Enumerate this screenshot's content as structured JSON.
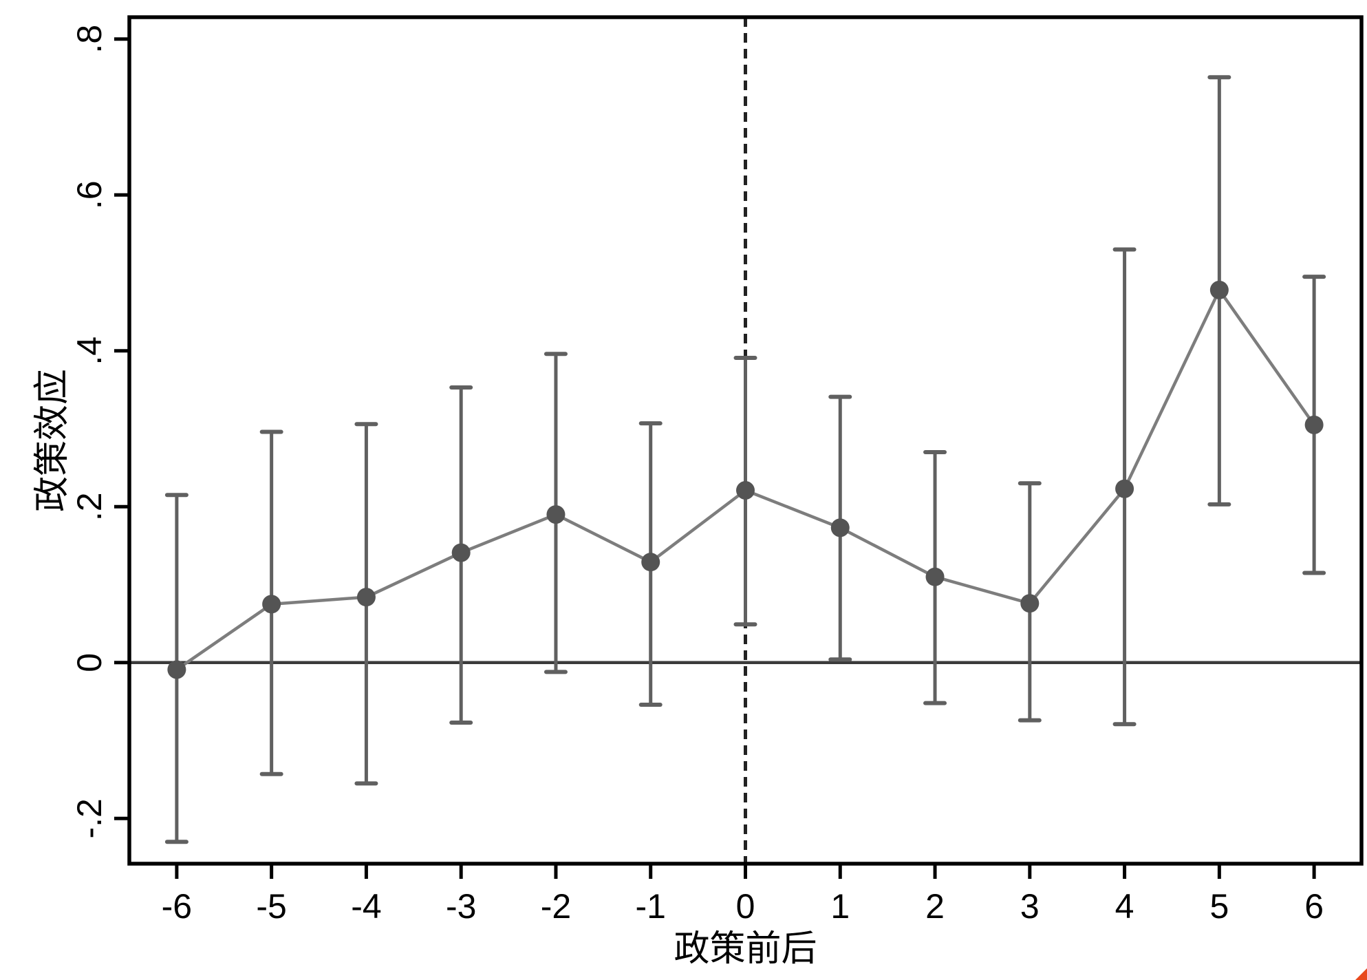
{
  "chart_data": {
    "type": "line",
    "title": "",
    "xlabel": "政策前后",
    "ylabel": "政策效应",
    "x": [
      -6,
      -5,
      -4,
      -3,
      -2,
      -1,
      0,
      1,
      2,
      3,
      4,
      5,
      6
    ],
    "x_tick_labels": [
      "-6",
      "-5",
      "-4",
      "-3",
      "-2",
      "-1",
      "0",
      "1",
      "2",
      "3",
      "4",
      "5",
      "6"
    ],
    "y_ticks": [
      {
        "value": 0.8,
        "label": ".8"
      },
      {
        "value": 0.6,
        "label": ".6"
      },
      {
        "value": 0.4,
        "label": ".4"
      },
      {
        "value": 0.2,
        "label": ".2"
      },
      {
        "value": 0,
        "label": "0"
      },
      {
        "value": -0.2,
        "label": "-.2"
      }
    ],
    "series": [
      {
        "name": "政策效应 point estimates",
        "values": [
          -0.009,
          0.075,
          0.084,
          0.141,
          0.19,
          0.129,
          0.221,
          0.173,
          0.11,
          0.076,
          0.223,
          0.478,
          0.305
        ]
      }
    ],
    "ci_low": [
      -0.23,
      -0.143,
      -0.155,
      -0.077,
      -0.012,
      -0.054,
      0.049,
      0.004,
      -0.052,
      -0.074,
      -0.079,
      0.203,
      0.115
    ],
    "ci_high": [
      0.215,
      0.296,
      0.306,
      0.353,
      0.396,
      0.307,
      0.391,
      0.341,
      0.27,
      0.23,
      0.53,
      0.751,
      0.495
    ],
    "xlim": [
      -6.5,
      6.5
    ],
    "ylim": [
      -0.258,
      0.828
    ],
    "grid": false,
    "legend": "none",
    "reference_lines": {
      "vertical_dashed_at_x": 0,
      "horizontal_solid_at_y": 0
    },
    "colors": {
      "marker": "#545454",
      "error_bar": "#606060",
      "line": "#7d7d7d",
      "zero_line": "#3a3a3a",
      "dashed_line": "#222222",
      "axis": "#000000",
      "background": "#ffffff",
      "corner_mark": "#e8491d"
    }
  }
}
